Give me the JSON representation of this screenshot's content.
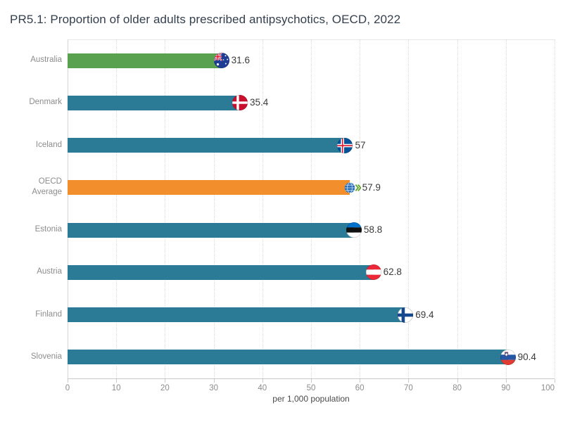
{
  "title": "PR5.1: Proportion of older adults prescribed antipsychotics, OECD, 2022",
  "chart_data": {
    "type": "bar",
    "orientation": "horizontal",
    "title": "PR5.1: Proportion of older adults prescribed antipsychotics, OECD, 2022",
    "xlabel": "per 1,000 population",
    "ylabel": "",
    "xlim": [
      0,
      100
    ],
    "xticks": [
      0,
      10,
      20,
      30,
      40,
      50,
      60,
      70,
      80,
      90,
      100
    ],
    "grid": "dotted-vertical",
    "legend": "none",
    "categories": [
      "Australia",
      "Denmark",
      "Iceland",
      "OECD Average",
      "Estonia",
      "Austria",
      "Finland",
      "Slovenia"
    ],
    "values": [
      31.6,
      35.4,
      57,
      57.9,
      58.8,
      62.8,
      69.4,
      90.4
    ],
    "rows": [
      {
        "label": "Australia",
        "value": 31.6,
        "display": "31.6",
        "color_role": "highlight",
        "flag": "australia-flag-icon"
      },
      {
        "label": "Denmark",
        "value": 35.4,
        "display": "35.4",
        "color_role": "default",
        "flag": "denmark-flag-icon"
      },
      {
        "label": "Iceland",
        "value": 57,
        "display": "57",
        "color_role": "default",
        "flag": "iceland-flag-icon"
      },
      {
        "label": "OECD Average",
        "value": 57.9,
        "display": "57.9",
        "color_role": "average",
        "flag": "oecd-logo-icon"
      },
      {
        "label": "Estonia",
        "value": 58.8,
        "display": "58.8",
        "color_role": "default",
        "flag": "estonia-flag-icon"
      },
      {
        "label": "Austria",
        "value": 62.8,
        "display": "62.8",
        "color_role": "default",
        "flag": "austria-flag-icon"
      },
      {
        "label": "Finland",
        "value": 69.4,
        "display": "69.4",
        "color_role": "default",
        "flag": "finland-flag-icon"
      },
      {
        "label": "Slovenia",
        "value": 90.4,
        "display": "90.4",
        "color_role": "default",
        "flag": "slovenia-flag-icon"
      }
    ],
    "palette": {
      "default": "#2b7b96",
      "highlight": "#59a14f",
      "average": "#f28e2b"
    }
  },
  "style_colors": {
    "title_text": "#333f4d",
    "axis_text": "#8c8c8c",
    "value_text": "#3a3a3a",
    "axis_line": "#c9c9c9",
    "gridline": "#dcdcdc"
  }
}
